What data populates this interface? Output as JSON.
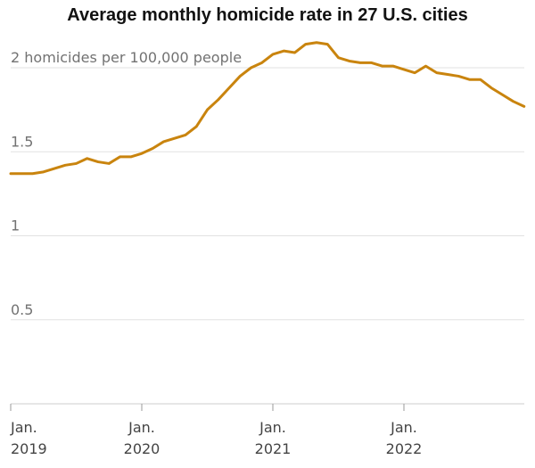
{
  "chart_data": {
    "type": "line",
    "title": "Average monthly homicide rate in 27 U.S. cities",
    "ylabel_unit": "homicides per 100,000 people",
    "ylim": [
      0,
      2.1
    ],
    "y_ticks": [
      {
        "value": 2,
        "label": "2 homicides per 100,000 people"
      },
      {
        "value": 1.5,
        "label": "1.5"
      },
      {
        "value": 1,
        "label": "1"
      },
      {
        "value": 0.5,
        "label": "0.5"
      }
    ],
    "x_ticks": [
      {
        "month_index": 0,
        "line1": "Jan.",
        "line2": "2019"
      },
      {
        "month_index": 12,
        "line1": "Jan.",
        "line2": "2020"
      },
      {
        "month_index": 24,
        "line1": "Jan.",
        "line2": "2021"
      },
      {
        "month_index": 36,
        "line1": "Jan.",
        "line2": "2022"
      }
    ],
    "grid": true,
    "line_color": "#c9840e",
    "series": [
      {
        "name": "",
        "x": [
          "2019-01",
          "2019-02",
          "2019-03",
          "2019-04",
          "2019-05",
          "2019-06",
          "2019-07",
          "2019-08",
          "2019-09",
          "2019-10",
          "2019-11",
          "2019-12",
          "2020-01",
          "2020-02",
          "2020-03",
          "2020-04",
          "2020-05",
          "2020-06",
          "2020-07",
          "2020-08",
          "2020-09",
          "2020-10",
          "2020-11",
          "2020-12",
          "2021-01",
          "2021-02",
          "2021-03",
          "2021-04",
          "2021-05",
          "2021-06",
          "2021-07",
          "2021-08",
          "2021-09",
          "2021-10",
          "2021-11",
          "2021-12",
          "2022-01",
          "2022-02",
          "2022-03",
          "2022-04",
          "2022-05",
          "2022-06",
          "2022-07",
          "2022-08",
          "2022-09",
          "2022-10",
          "2022-11",
          "2022-12"
        ],
        "values": [
          1.37,
          1.37,
          1.37,
          1.38,
          1.4,
          1.42,
          1.43,
          1.46,
          1.44,
          1.43,
          1.47,
          1.47,
          1.49,
          1.52,
          1.56,
          1.58,
          1.6,
          1.65,
          1.75,
          1.81,
          1.88,
          1.95,
          2.0,
          2.03,
          2.08,
          2.1,
          2.09,
          2.14,
          2.15,
          2.14,
          2.06,
          2.04,
          2.03,
          2.03,
          2.01,
          2.01,
          1.99,
          1.97,
          2.01,
          1.97,
          1.96,
          1.95,
          1.93,
          1.93,
          1.88,
          1.84,
          1.8,
          1.77
        ]
      }
    ]
  }
}
